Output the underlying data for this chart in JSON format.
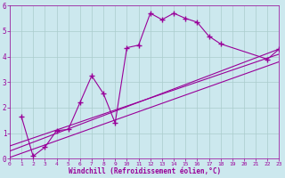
{
  "xlabel": "Windchill (Refroidissement éolien,°C)",
  "bg_color": "#cce8ee",
  "line_color": "#990099",
  "grid_color": "#aacccc",
  "xlim": [
    0,
    23
  ],
  "ylim": [
    0,
    6
  ],
  "xticks": [
    0,
    1,
    2,
    3,
    4,
    5,
    6,
    7,
    8,
    9,
    10,
    11,
    12,
    13,
    14,
    15,
    16,
    17,
    18,
    19,
    20,
    21,
    22,
    23
  ],
  "yticks": [
    0,
    1,
    2,
    3,
    4,
    5,
    6
  ],
  "series1_x": [
    1,
    2,
    3,
    4,
    5,
    6,
    7,
    8,
    9,
    10,
    11,
    12,
    13,
    14,
    15,
    16,
    17,
    18,
    22,
    23
  ],
  "series1_y": [
    1.65,
    0.1,
    0.45,
    1.1,
    1.15,
    2.2,
    3.25,
    2.55,
    1.4,
    4.35,
    4.45,
    5.7,
    5.45,
    5.7,
    5.5,
    5.35,
    4.8,
    4.5,
    3.9,
    4.3
  ],
  "series2_x": [
    0,
    23
  ],
  "series2_y": [
    0.3,
    4.3
  ],
  "series3_x": [
    0,
    23
  ],
  "series3_y": [
    0.05,
    3.8
  ],
  "series4_x": [
    0,
    23
  ],
  "series4_y": [
    0.5,
    4.1
  ]
}
